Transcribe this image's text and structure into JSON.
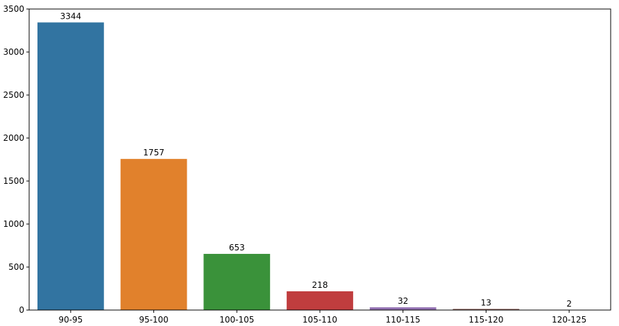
{
  "chart_data": {
    "type": "bar",
    "categories": [
      "90-95",
      "95-100",
      "100-105",
      "105-110",
      "110-115",
      "115-120",
      "120-125"
    ],
    "values": [
      3344,
      1757,
      653,
      218,
      32,
      13,
      2
    ],
    "colors": [
      "#3274a1",
      "#e1812c",
      "#3a923a",
      "#c03d3e",
      "#9372b2",
      "#845b53",
      "#d684bd"
    ],
    "ylim": [
      0,
      3500
    ],
    "yticks": [
      0,
      500,
      1000,
      1500,
      2000,
      2500,
      3000,
      3500
    ],
    "grid": false
  }
}
